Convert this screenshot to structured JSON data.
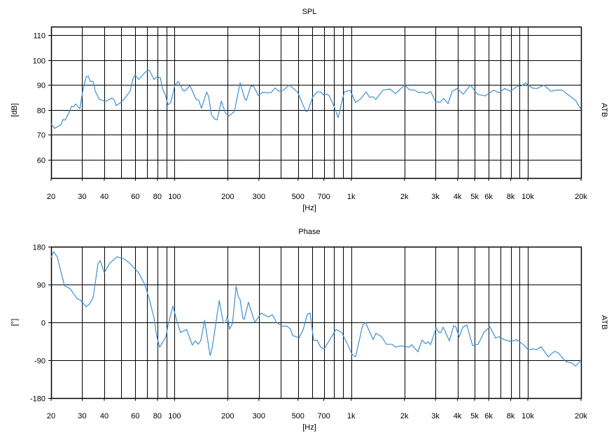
{
  "chart_data": [
    {
      "type": "line",
      "title": "SPL",
      "xlabel": "[Hz]",
      "ylabel": "[dB]",
      "right_label": "ATB",
      "x_scale": "log",
      "xlim": [
        20,
        20000
      ],
      "ylim": [
        52.7,
        113.4
      ],
      "grid": true,
      "x_ticks": [
        20,
        30,
        40,
        60,
        80,
        100,
        200,
        300,
        500,
        700,
        1000,
        2000,
        3000,
        4000,
        5000,
        6000,
        8000,
        10000,
        20000
      ],
      "x_tick_labels": [
        "20",
        "30",
        "40",
        "60",
        "80",
        "100",
        "200",
        "300",
        "500",
        "700",
        "1k",
        "2k",
        "3k",
        "4k",
        "5k",
        "6k",
        "8k",
        "10k",
        "20k"
      ],
      "y_ticks": [
        60,
        70,
        80,
        90,
        100,
        110
      ],
      "y_tick_labels": [
        "60",
        "70",
        "80",
        "90",
        "100",
        "110"
      ],
      "line_color": "#3d8fd1",
      "x": [
        20,
        20.9,
        22.7,
        23.4,
        24.0,
        25.1,
        26.1,
        26.8,
        27.5,
        29.1,
        30.2,
        31.6,
        32.4,
        33.3,
        34.6,
        35.5,
        37.5,
        40.4,
        43.0,
        44.2,
        45.5,
        46.7,
        49.4,
        51.7,
        56.1,
        58.2,
        59.8,
        62.6,
        67.9,
        71.8,
        76.5,
        79.3,
        83.1,
        85.4,
        88.5,
        91.8,
        95.2,
        100.5,
        105,
        112,
        115,
        122,
        125,
        132,
        137,
        142,
        152,
        156,
        162,
        169,
        174,
        184,
        194,
        203,
        218,
        235,
        250,
        255,
        270,
        280,
        298,
        315,
        351,
        371,
        388,
        414,
        445,
        497,
        554,
        569,
        607,
        641,
        671,
        696,
        729,
        749,
        798,
        843,
        883,
        915,
        985,
        1059,
        1129,
        1215,
        1271,
        1331,
        1380,
        1512,
        1657,
        1782,
        2006,
        2139,
        2301,
        2408,
        2520,
        2686,
        2812,
        2998,
        3168,
        3345,
        3533,
        3732,
        3979,
        4318,
        4732,
        5184,
        5731,
        6393,
        6879,
        7400,
        7960,
        8643,
        9210,
        9730,
        10563,
        11260,
        12340,
        13510,
        14540,
        15640,
        17130,
        18600,
        20000
      ],
      "y": [
        74.5,
        72.6,
        74,
        76.2,
        75.9,
        78.5,
        81.5,
        81.2,
        82.4,
        80.5,
        87.6,
        93.2,
        93.6,
        91.5,
        91.3,
        87.6,
        84.3,
        83.4,
        84.3,
        84.8,
        84,
        81.7,
        82.9,
        84.3,
        87.6,
        92.7,
        94.1,
        92.2,
        95,
        96,
        92.2,
        93.2,
        92.9,
        88.5,
        86.2,
        82,
        83.1,
        90,
        91.4,
        87.7,
        87.7,
        89.7,
        88.3,
        84.4,
        83.9,
        80.7,
        87.2,
        85.3,
        77.9,
        76.3,
        76,
        83.5,
        78.8,
        77.6,
        79.3,
        90.9,
        84.4,
        83.9,
        89.5,
        89.5,
        85.8,
        87,
        86.9,
        88.8,
        87.5,
        87.9,
        90,
        87.2,
        79.3,
        79.7,
        85.3,
        87.2,
        87.2,
        86,
        86.3,
        85.8,
        81.6,
        76.9,
        83,
        87.2,
        87.9,
        83,
        84.4,
        87.2,
        85,
        85.3,
        84.2,
        87.9,
        88.4,
        86.5,
        90,
        88.1,
        87.9,
        86.9,
        87.2,
        86.5,
        87.5,
        83.5,
        83,
        84.6,
        82.5,
        87.5,
        88.6,
        86.3,
        90,
        86.3,
        85.6,
        87.9,
        86.9,
        88.6,
        87.5,
        89.3,
        89.7,
        90.9,
        88.8,
        88.6,
        90,
        87.5,
        88,
        87.9,
        85.8,
        83.9,
        80.2
      ]
    },
    {
      "type": "line",
      "title": "Phase",
      "xlabel": "[Hz]",
      "ylabel": "[°]",
      "right_label": "ATB",
      "x_scale": "log",
      "xlim": [
        20,
        20000
      ],
      "ylim": [
        -180,
        180
      ],
      "grid": true,
      "x_ticks": [
        20,
        30,
        40,
        60,
        80,
        100,
        200,
        300,
        500,
        700,
        1000,
        2000,
        3000,
        4000,
        5000,
        6000,
        8000,
        10000,
        20000
      ],
      "x_tick_labels": [
        "20",
        "30",
        "40",
        "60",
        "80",
        "100",
        "200",
        "300",
        "500",
        "700",
        "1k",
        "2k",
        "3k",
        "4k",
        "5k",
        "6k",
        "8k",
        "10k",
        "20k"
      ],
      "y_ticks": [
        -180,
        -90,
        0,
        90,
        180
      ],
      "y_tick_labels": [
        "-180",
        "-90",
        "0",
        "90",
        "180"
      ],
      "line_color": "#3d8fd1",
      "x": [
        20,
        20.7,
        21.7,
        23.8,
        25.6,
        28.0,
        29.3,
        31.6,
        33.0,
        34.6,
        36.9,
        37.9,
        40.0,
        43.0,
        47.2,
        51.7,
        55.6,
        62.6,
        67.9,
        71.8,
        76.5,
        79.3,
        82.3,
        89.3,
        91.8,
        97.9,
        103,
        108,
        117,
        126,
        131,
        136,
        141,
        148,
        159,
        163,
        179,
        189,
        194,
        199,
        205,
        213,
        223,
        229,
        235,
        244,
        248,
        262,
        272,
        285,
        309,
        339,
        358,
        378,
        406,
        433,
        453,
        466,
        506,
        534,
        564,
        585,
        613,
        641,
        671,
        703,
        820,
        883,
        958,
        1012,
        1059,
        1160,
        1204,
        1331,
        1380,
        1484,
        1582,
        1702,
        1782,
        1899,
        2139,
        2198,
        2386,
        2520,
        2638,
        2736,
        2812,
        3026,
        3139,
        3226,
        3315,
        3598,
        3802,
        3905,
        4089,
        4279,
        4520,
        4863,
        5232,
        5678,
        6109,
        6572,
        6879,
        7332,
        7887,
        8255,
        8643,
        9380,
        10092,
        10563,
        11260,
        11890,
        13030,
        14150,
        14810,
        16370,
        17770,
        18600,
        19470,
        20000
      ],
      "y": [
        155,
        168,
        155,
        87,
        80,
        57,
        53,
        37,
        44,
        59,
        141,
        147,
        118,
        141,
        156,
        151,
        141,
        118,
        90,
        56,
        11,
        -34,
        -59,
        -34,
        -7,
        39,
        4,
        -24,
        -17,
        -54,
        -44,
        -52,
        -43,
        5,
        -79,
        -63,
        52,
        -2,
        0,
        15,
        -16,
        -2,
        86,
        62,
        54,
        9,
        7,
        48,
        26,
        0,
        22,
        13,
        18,
        0,
        -9,
        -9,
        -16,
        -31,
        -37,
        -18,
        19,
        22,
        -43,
        -42,
        -59,
        -63,
        -17,
        -24,
        -54,
        -76,
        -82,
        -7,
        0,
        -41,
        -26,
        -34,
        -52,
        -52,
        -59,
        -56,
        -59,
        -53,
        -70,
        -42,
        -51,
        -46,
        -53,
        -14,
        -24,
        -24,
        -11,
        -44,
        -8,
        -10,
        -35,
        -12,
        -6,
        -55,
        -52,
        -22,
        -11,
        -37,
        -34,
        -41,
        -45,
        -44,
        -41,
        -52,
        -66,
        -63,
        -65,
        -58,
        -82,
        -69,
        -72,
        -93,
        -97,
        -104,
        -96,
        -88
      ]
    }
  ]
}
